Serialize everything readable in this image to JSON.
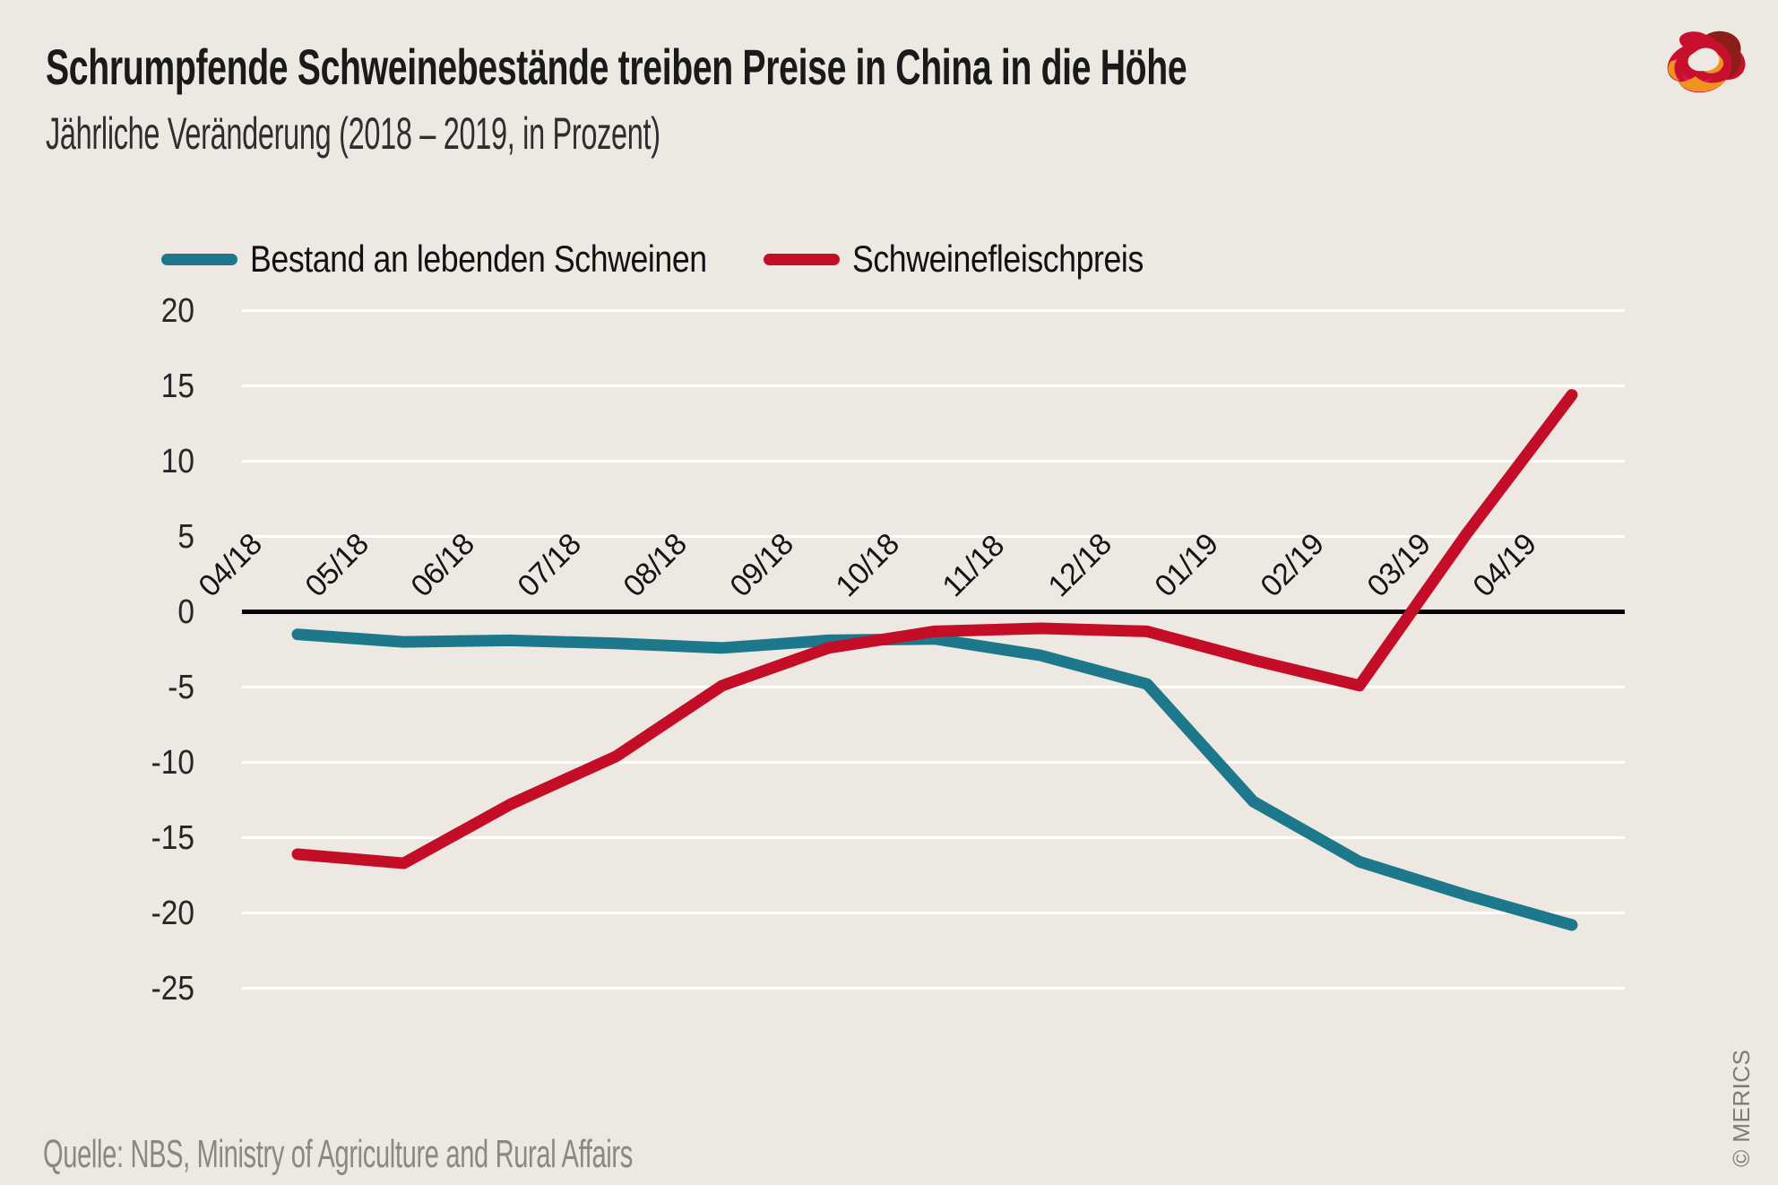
{
  "header": {
    "title": "Schrumpfende Schweinebestände treiben Preise in China in die Höhe",
    "subtitle": "Jährliche Veränderung (2018 – 2019, in Prozent)"
  },
  "logo": {
    "name": "merics-logo",
    "colors": {
      "red": "#C8102E",
      "dark_red": "#8C1D18",
      "orange": "#F0941F",
      "pink": "#E0156B"
    }
  },
  "chart_data": {
    "type": "line",
    "categories": [
      "04/18",
      "05/18",
      "06/18",
      "07/18",
      "08/18",
      "09/18",
      "10/18",
      "11/18",
      "12/18",
      "01/19",
      "02/19",
      "03/19",
      "04/19"
    ],
    "series": [
      {
        "name": "Bestand an lebenden Schweinen",
        "color": "#1E788B",
        "values": [
          -1.5,
          -2.0,
          -1.9,
          -2.1,
          -2.4,
          -1.9,
          -1.8,
          -2.9,
          -4.8,
          -12.6,
          -16.6,
          -18.8,
          -20.8
        ]
      },
      {
        "name": "Schweinefleischpreis",
        "color": "#C40D26",
        "values": [
          -16.1,
          -16.7,
          -12.8,
          -9.6,
          -4.9,
          -2.4,
          -1.3,
          -1.1,
          -1.3,
          -3.2,
          -4.9,
          5.1,
          14.4
        ]
      }
    ],
    "title": "Schrumpfende Schweinebestände treiben Preise in China in die Höhe",
    "xlabel": "",
    "ylabel": "",
    "yticks": [
      20,
      15,
      10,
      5,
      0,
      -5,
      -10,
      -15,
      -20,
      -25
    ],
    "ylim": [
      -27,
      22
    ],
    "grid": true,
    "zero_line": true,
    "legend_position": "top"
  },
  "footer": {
    "source": "Quelle: NBS, Ministry of Agriculture and Rural Affairs",
    "copyright": "© MERICS"
  }
}
